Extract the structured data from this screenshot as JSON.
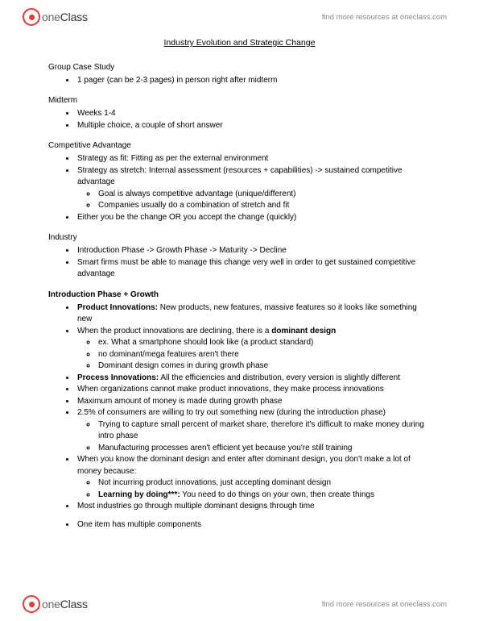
{
  "brand": {
    "one": "one",
    "class": "Class",
    "tagline": "find more resources at oneclass.com"
  },
  "doc": {
    "title": "Industry Evolution and Strategic Change",
    "sections": {
      "group_case": {
        "label": "Group Case Study",
        "b1": "1 pager (can be 2-3 pages) in person right after midterm"
      },
      "midterm": {
        "label": "Midterm",
        "b1": "Weeks 1-4",
        "b2": "Multiple choice, a couple of short answer"
      },
      "competitive": {
        "label": "Competitive Advantage",
        "b1": "Strategy as fit: Fitting as per the external environment",
        "b2": "Strategy as stretch: Internal assessment (resources + capabilities) -> sustained competitive advantage",
        "b2a": "Goal is always competitive advantage (unique/different)",
        "b2b": "Companies usually do a combination of stretch and fit",
        "b3": "Either you be the change OR you accept the change (quickly)"
      },
      "industry": {
        "label": "Industry",
        "b1": "Introduction Phase -> Growth Phase -> Maturity -> Decline",
        "b2": "Smart firms must be able to manage this change very well in order to get sustained competitive advantage"
      },
      "intro_growth": {
        "label": "Introduction Phase + Growth",
        "b1_bold": "Product Innovations:",
        "b1_rest": " New products, new features, massive features so it looks like something new",
        "b2": "When the product innovations are declining, there is a ",
        "b2_bold": "dominant design",
        "b2a": "ex. What a smartphone should look like (a product standard)",
        "b2b": "no dominant/mega features aren't there",
        "b2c": "Dominant design comes in during growth phase",
        "b3_bold": "Process Innovations:",
        "b3_rest": " All the efficiencies and distribution, every version is slightly different",
        "b4": "When organizations cannot make product innovations, they make process innovations",
        "b5": "Maximum amount of money is made during growth phase",
        "b6": "2.5% of consumers are willing to try out something new (during the introduction phase)",
        "b6a": "Trying to capture small percent of market share, therefore it's difficult to make money during intro phase",
        "b6b": "Manufacturing processes aren't efficient yet because you're still training",
        "b7": "When you know the dominant design and enter after dominant design, you don't make a lot of money because:",
        "b7a": "Not incurring product innovations, just accepting dominant design",
        "b7b_bold": "Learning by doing***:",
        "b7b_rest": " You need to do things on your own, then create things",
        "b8": "Most industries go through multiple dominant designs through time",
        "b9": "One item has multiple components"
      }
    }
  }
}
